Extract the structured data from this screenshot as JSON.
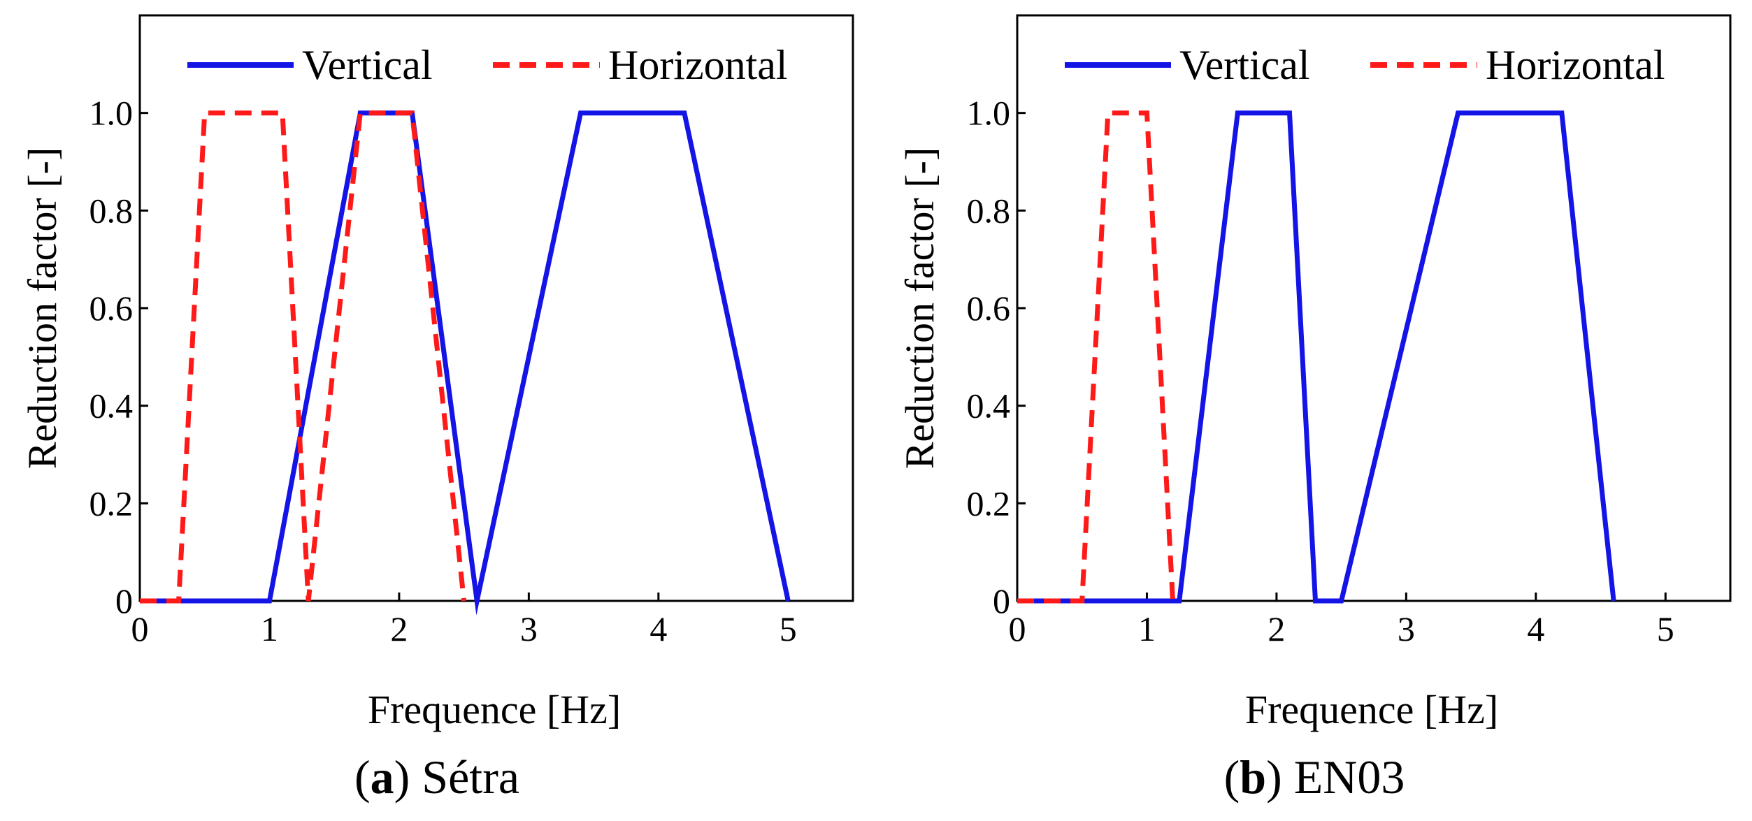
{
  "colors": {
    "vertical": "#1414e6",
    "horizontal": "#ff1a1a",
    "axis": "#000000"
  },
  "chart_data": [
    {
      "type": "line",
      "caption_letter": "a",
      "caption_text": "Sétra",
      "xlabel": "Frequence [Hz]",
      "ylabel": "Reduction factor [-]",
      "xlim": [
        0,
        5.5
      ],
      "ylim": [
        0,
        1.2
      ],
      "xticks": [
        0,
        1,
        2,
        3,
        4,
        5
      ],
      "xtick_labels": [
        "0",
        "1",
        "2",
        "3",
        "4",
        "5"
      ],
      "yticks": [
        0,
        0.2,
        0.4,
        0.6,
        0.8,
        1.0
      ],
      "ytick_labels": [
        "0",
        "0.2",
        "0.4",
        "0.6",
        "0.8",
        "1.0"
      ],
      "grid": false,
      "legend_position": "top",
      "series": [
        {
          "name": "Vertical",
          "style": "solid",
          "x": [
            0,
            1,
            1.7,
            2.1,
            2.6,
            3.4,
            4.2,
            5
          ],
          "y": [
            0,
            0,
            1,
            1,
            0,
            1,
            1,
            0
          ]
        },
        {
          "name": "Horizontal",
          "style": "dashed",
          "x": [
            0,
            0.3,
            0.5,
            1.1,
            1.3,
            1.7,
            2.1,
            2.5
          ],
          "y": [
            0,
            0,
            1,
            1,
            0,
            1,
            1,
            0
          ]
        }
      ]
    },
    {
      "type": "line",
      "caption_letter": "b",
      "caption_text": "EN03",
      "xlabel": "Frequence [Hz]",
      "ylabel": "Reduction factor [-]",
      "xlim": [
        0,
        5.5
      ],
      "ylim": [
        0,
        1.2
      ],
      "xticks": [
        0,
        1,
        2,
        3,
        4,
        5
      ],
      "xtick_labels": [
        "0",
        "1",
        "2",
        "3",
        "4",
        "5"
      ],
      "yticks": [
        0,
        0.2,
        0.4,
        0.6,
        0.8,
        1.0
      ],
      "ytick_labels": [
        "0",
        "0.2",
        "0.4",
        "0.6",
        "0.8",
        "1.0"
      ],
      "grid": false,
      "legend_position": "top",
      "series": [
        {
          "name": "Vertical",
          "style": "solid",
          "x": [
            0,
            1.25,
            1.7,
            2.1,
            2.3,
            2.5,
            3.4,
            4.2,
            4.6
          ],
          "y": [
            0,
            0,
            1,
            1,
            0,
            0,
            1,
            1,
            0
          ]
        },
        {
          "name": "Horizontal",
          "style": "dashed",
          "x": [
            0,
            0.5,
            0.7,
            1.0,
            1.2
          ],
          "y": [
            0,
            0,
            1,
            1,
            0
          ]
        }
      ]
    }
  ]
}
